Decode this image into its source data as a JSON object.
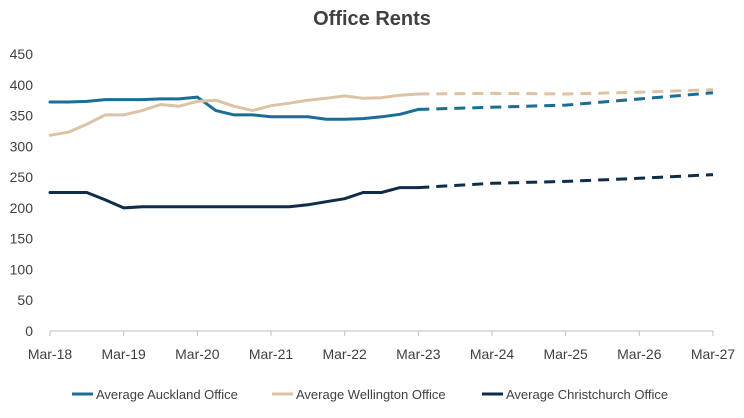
{
  "chart_data": {
    "type": "line",
    "title": "Office Rents",
    "xlabel": "",
    "ylabel": "",
    "ylim": [
      0,
      450
    ],
    "yticks": [
      0,
      50,
      100,
      150,
      200,
      250,
      300,
      350,
      400,
      450
    ],
    "x_tick_labels": [
      "Mar-18",
      "Mar-19",
      "Mar-20",
      "Mar-21",
      "Mar-22",
      "Mar-23",
      "Mar-24",
      "Mar-25",
      "Mar-26",
      "Mar-27"
    ],
    "x_tick_positions": [
      0,
      4,
      8,
      12,
      16,
      20,
      24,
      28,
      32,
      36
    ],
    "x_unit": "quarters since Mar-18",
    "forecast_start_index": 20,
    "grid": false,
    "legend_position": "bottom",
    "series": [
      {
        "name": "Average Auckland Office",
        "color": "#1a6e96",
        "values": [
          [
            0,
            372
          ],
          [
            1,
            372
          ],
          [
            2,
            373
          ],
          [
            3,
            376
          ],
          [
            4,
            376
          ],
          [
            5,
            376
          ],
          [
            6,
            377
          ],
          [
            7,
            377
          ],
          [
            8,
            380
          ],
          [
            9,
            358
          ],
          [
            10,
            351
          ],
          [
            11,
            351
          ],
          [
            12,
            348
          ],
          [
            13,
            348
          ],
          [
            14,
            348
          ],
          [
            15,
            344
          ],
          [
            16,
            344
          ],
          [
            17,
            345
          ],
          [
            18,
            348
          ],
          [
            19,
            352
          ],
          [
            20,
            360
          ],
          [
            28,
            367
          ],
          [
            36,
            387
          ]
        ]
      },
      {
        "name": "Average Wellington Office",
        "color": "#dcc3a5",
        "values": [
          [
            0,
            318
          ],
          [
            1,
            323
          ],
          [
            2,
            336
          ],
          [
            3,
            351
          ],
          [
            4,
            351
          ],
          [
            5,
            358
          ],
          [
            6,
            368
          ],
          [
            7,
            365
          ],
          [
            8,
            373
          ],
          [
            9,
            375
          ],
          [
            10,
            365
          ],
          [
            11,
            358
          ],
          [
            12,
            366
          ],
          [
            13,
            370
          ],
          [
            14,
            375
          ],
          [
            15,
            378
          ],
          [
            16,
            382
          ],
          [
            17,
            378
          ],
          [
            18,
            379
          ],
          [
            19,
            383
          ],
          [
            20,
            385
          ],
          [
            24,
            386
          ],
          [
            28,
            385
          ],
          [
            32,
            388
          ],
          [
            36,
            392
          ]
        ]
      },
      {
        "name": "Average Christchurch Office",
        "color": "#0f2d4a",
        "values": [
          [
            0,
            225
          ],
          [
            1,
            225
          ],
          [
            2,
            225
          ],
          [
            3,
            213
          ],
          [
            4,
            200
          ],
          [
            5,
            202
          ],
          [
            6,
            202
          ],
          [
            7,
            202
          ],
          [
            8,
            202
          ],
          [
            9,
            202
          ],
          [
            10,
            202
          ],
          [
            11,
            202
          ],
          [
            12,
            202
          ],
          [
            13,
            202
          ],
          [
            14,
            205
          ],
          [
            15,
            210
          ],
          [
            16,
            215
          ],
          [
            17,
            225
          ],
          [
            18,
            225
          ],
          [
            19,
            233
          ],
          [
            20,
            233
          ],
          [
            24,
            240
          ],
          [
            28,
            243
          ],
          [
            32,
            248
          ],
          [
            36,
            254
          ]
        ]
      }
    ]
  }
}
